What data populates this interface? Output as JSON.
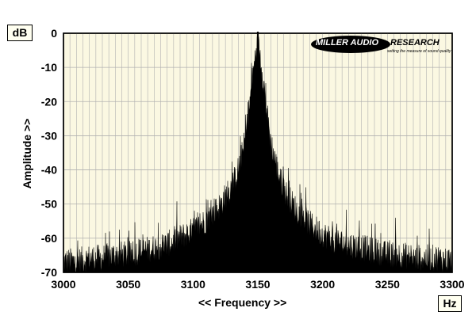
{
  "chart_data": {
    "type": "area",
    "xlabel": "<< Frequency >>",
    "ylabel": "Amplitude >>",
    "x_unit": "Hz",
    "y_unit": "dB",
    "xlim": [
      3000,
      3300
    ],
    "ylim": [
      -70,
      0
    ],
    "x_ticks": [
      "3000",
      "3050",
      "3100",
      "3150",
      "3200",
      "3250",
      "3300"
    ],
    "y_ticks": [
      "0",
      "-10",
      "-20",
      "-30",
      "-40",
      "-50",
      "-60",
      "-70"
    ],
    "grid": true,
    "series": [
      {
        "x": [
          3000,
          3010,
          3020,
          3030,
          3040,
          3050,
          3060,
          3070,
          3080,
          3090,
          3100,
          3110,
          3120,
          3130,
          3135,
          3140,
          3143,
          3146,
          3148,
          3149,
          3150,
          3151,
          3152,
          3154,
          3157,
          3160,
          3165,
          3170,
          3180,
          3190,
          3200,
          3210,
          3220,
          3230,
          3240,
          3250,
          3260,
          3270,
          3280,
          3290,
          3300
        ],
        "values": [
          -68,
          -68,
          -67,
          -67,
          -66,
          -66,
          -65,
          -64,
          -63,
          -61,
          -59,
          -56,
          -52,
          -46,
          -41,
          -33,
          -24,
          -14,
          -8,
          -5,
          -2,
          -5,
          -8,
          -14,
          -24,
          -33,
          -41,
          -47,
          -53,
          -57,
          -60,
          -62,
          -63,
          -64,
          -65,
          -66,
          -66,
          -67,
          -67,
          -67,
          -68
        ]
      }
    ],
    "colors": {
      "plot_bg": "#fbf8e2",
      "fill": "#000000",
      "grid": "#b0b0b0",
      "carrier_line": "#000000"
    }
  },
  "logo": {
    "text_white": "MILLER AUDIO",
    "text_black": "RESEARCH",
    "tagline": "setting the measure of sound quality"
  }
}
